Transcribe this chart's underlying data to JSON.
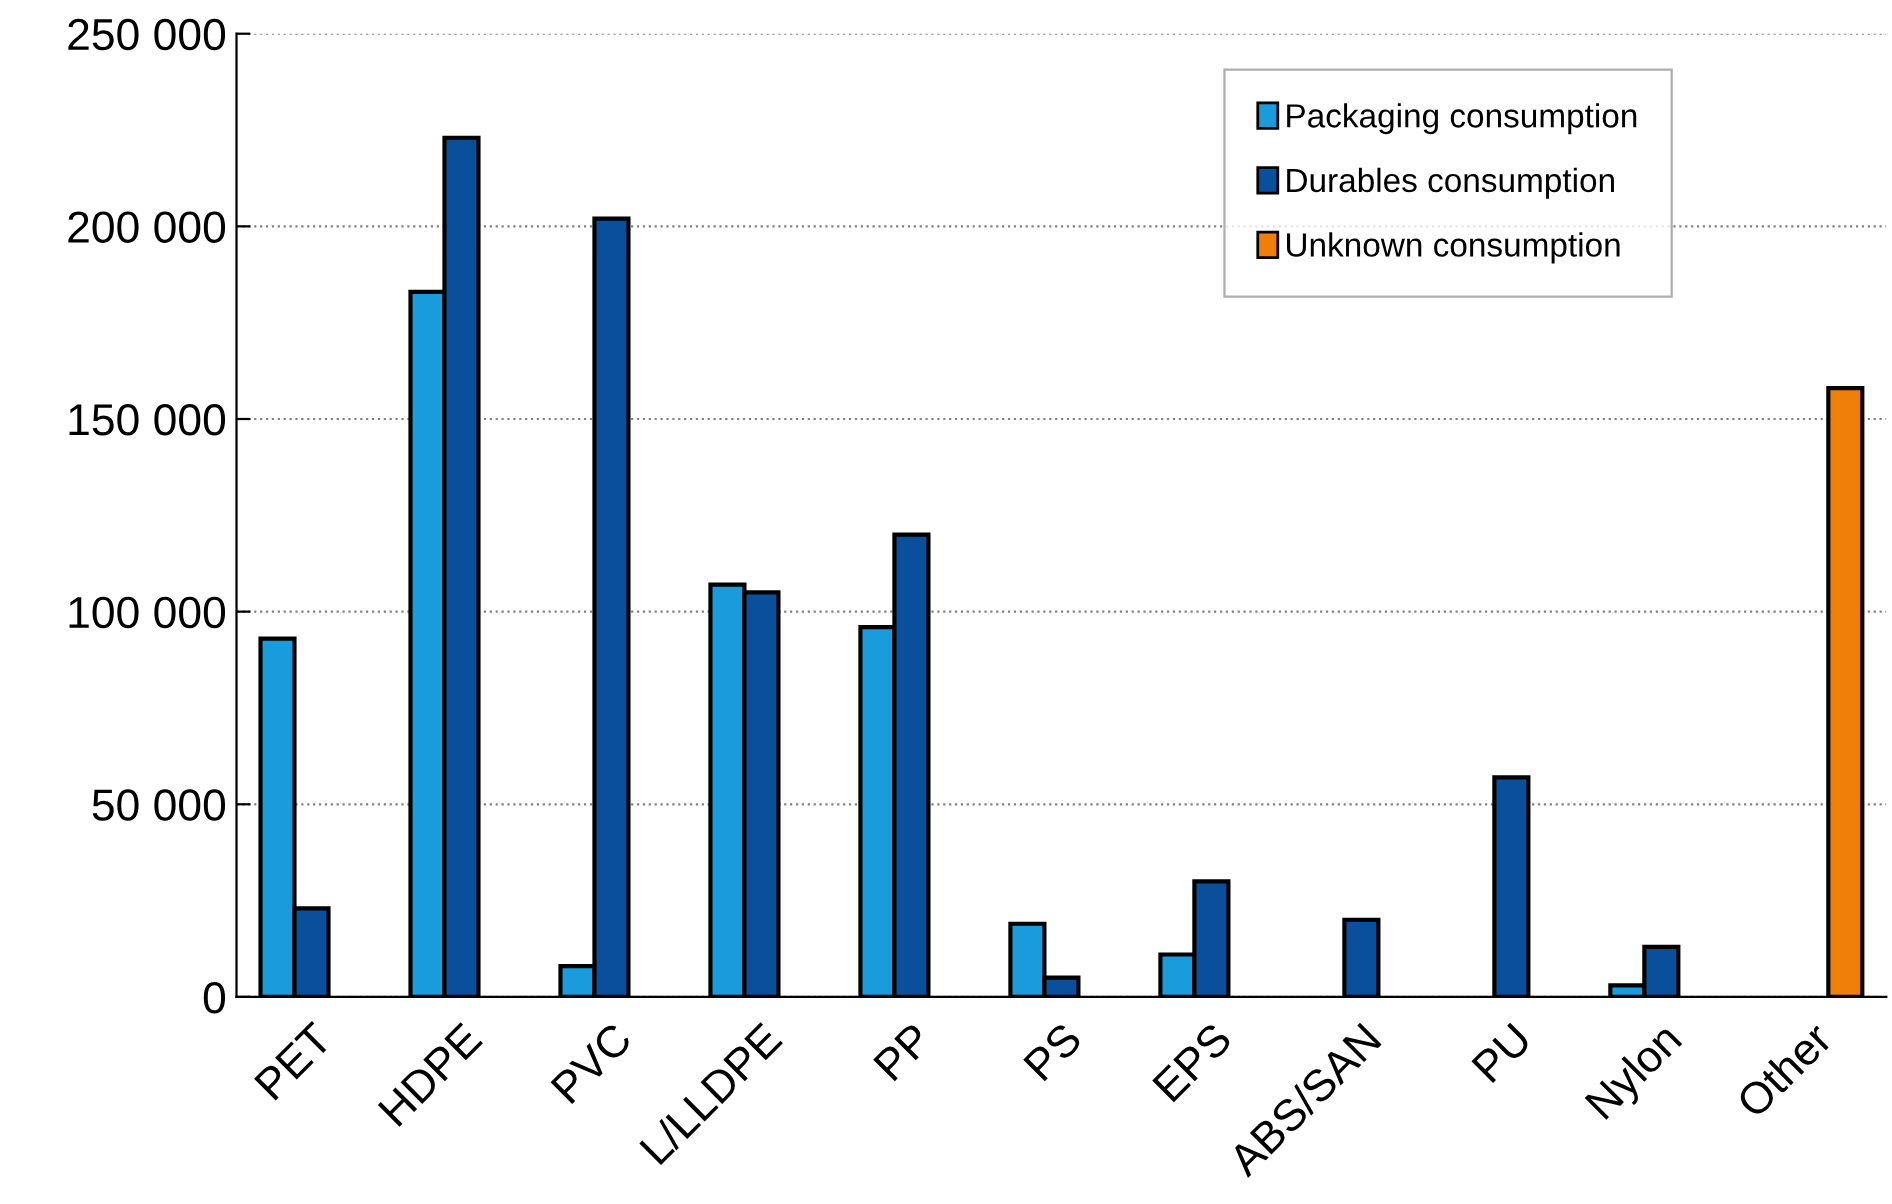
{
  "chart_data": {
    "type": "bar",
    "categories": [
      "PET",
      "HDPE",
      "PVC",
      "L/LLDPE",
      "PP",
      "PS",
      "EPS",
      "ABS/SAN",
      "PU",
      "Nylon",
      "Other"
    ],
    "series": [
      {
        "name": "Packaging consumption",
        "color": "#1a9bdc",
        "values": [
          93000,
          183000,
          8000,
          107000,
          96000,
          19000,
          11000,
          null,
          null,
          3000,
          null
        ]
      },
      {
        "name": "Durables consumption",
        "color": "#0a4f9c",
        "values": [
          23000,
          223000,
          202000,
          105000,
          120000,
          5000,
          30000,
          20000,
          57000,
          13000,
          null
        ]
      },
      {
        "name": "Unknown consumption",
        "color": "#f07f09",
        "values": [
          null,
          null,
          null,
          null,
          null,
          null,
          null,
          null,
          null,
          null,
          158000
        ]
      }
    ],
    "ylim": [
      0,
      250000
    ],
    "yticks": [
      0,
      {
        "value": 50000,
        "label": "50 000"
      },
      {
        "value": 100000,
        "label": "100 000"
      },
      {
        "value": 150000,
        "label": "150 000"
      },
      {
        "value": 200000,
        "label": "200 000"
      },
      {
        "value": 250000,
        "label": "250 000"
      }
    ],
    "grid": "y",
    "legend": "top right"
  }
}
